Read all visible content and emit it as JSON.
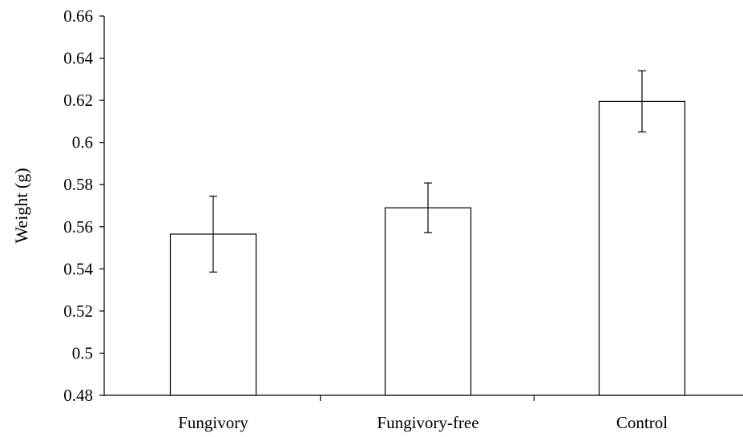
{
  "chart_data": {
    "type": "bar",
    "title": "",
    "xlabel": "",
    "ylabel": "Weight (g)",
    "categories": [
      "Fungivory",
      "Fungivory-free",
      "Control"
    ],
    "series": [
      {
        "values": [
          0.5565,
          0.569,
          0.6195
        ],
        "error": [
          0.018,
          0.0118,
          0.0145
        ]
      }
    ],
    "ylim": [
      0.48,
      0.66
    ],
    "yticks": [
      0.48,
      0.5,
      0.52,
      0.54,
      0.56,
      0.58,
      0.6,
      0.62,
      0.64,
      0.66
    ],
    "ytick_labels": [
      "0.48",
      "0.5",
      "0.52",
      "0.54",
      "0.56",
      "0.58",
      "0.6",
      "0.62",
      "0.64",
      "0.66"
    ],
    "grid": false,
    "legend": "none",
    "colors": {
      "bar_fill": "#ffffff",
      "bar_stroke": "#000000",
      "axis": "#000000"
    }
  }
}
